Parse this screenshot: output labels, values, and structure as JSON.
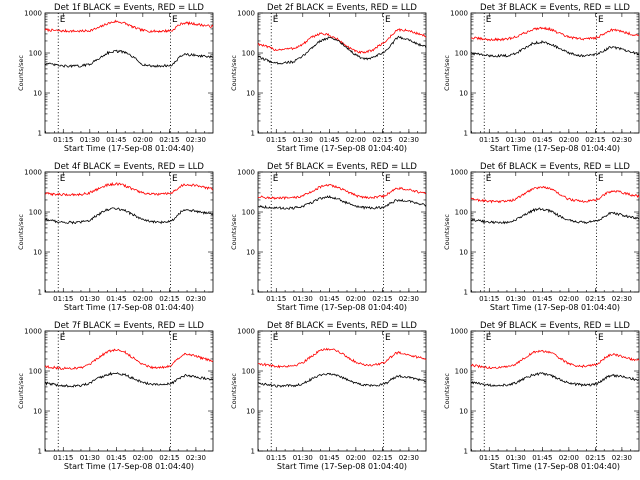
{
  "colors": {
    "events": "#000000",
    "lld": "#ff0000",
    "background": "#ffffff"
  },
  "chart_data": [
    {
      "type": "line",
      "title": "Det 1f BLACK = Events, RED = LLD",
      "xlabel": "Start Time (17-Sep-08 01:04:40)",
      "ylabel": "Counts/sec",
      "x_ticks": [
        "01:15",
        "01:30",
        "01:45",
        "02:00",
        "02:15",
        "02:30"
      ],
      "y_ticks": [
        "1",
        "10",
        "100",
        "1000"
      ],
      "yscale": "log",
      "ylim": [
        1,
        1000
      ],
      "xlim_min": [
        0,
        95
      ],
      "x_ticks_min": [
        10.33,
        25.33,
        40.33,
        55.33,
        70.33,
        85.33
      ],
      "markers_min": [
        7.5,
        71.0
      ],
      "marker_labels": [
        "E",
        "E"
      ],
      "grid": false,
      "x_min": [
        0,
        10,
        20,
        25,
        30,
        35,
        40,
        45,
        50,
        55,
        60,
        65,
        70,
        72,
        75,
        78,
        80,
        85,
        90,
        95
      ],
      "series": [
        {
          "color": "red",
          "values": [
            380,
            355,
            350,
            360,
            420,
            540,
            620,
            560,
            440,
            370,
            350,
            350,
            360,
            360,
            480,
            560,
            560,
            530,
            490,
            460
          ]
        },
        {
          "color": "black",
          "values": [
            55,
            47,
            47,
            52,
            70,
            100,
            112,
            105,
            78,
            52,
            47,
            47,
            49,
            49,
            70,
            92,
            92,
            88,
            82,
            78
          ]
        }
      ]
    },
    {
      "type": "line",
      "title": "Det 2f BLACK = Events, RED = LLD",
      "xlabel": "Start Time (17-Sep-08 01:04:40)",
      "ylabel": "Counts/sec",
      "x_ticks": [
        "01:15",
        "01:30",
        "01:45",
        "02:00",
        "02:15",
        "02:30"
      ],
      "y_ticks": [
        "1",
        "10",
        "100",
        "1000"
      ],
      "yscale": "log",
      "ylim": [
        1,
        1000
      ],
      "xlim_min": [
        0,
        95
      ],
      "x_ticks_min": [
        10.33,
        25.33,
        40.33,
        55.33,
        70.33,
        85.33
      ],
      "markers_min": [
        7.5,
        71.0
      ],
      "marker_labels": [
        "E",
        "E"
      ],
      "grid": false,
      "x_min": [
        0,
        10,
        20,
        25,
        30,
        35,
        40,
        45,
        50,
        55,
        60,
        65,
        70,
        72,
        75,
        78,
        80,
        85,
        90,
        95
      ],
      "series": [
        {
          "color": "red",
          "values": [
            170,
            120,
            130,
            160,
            240,
            310,
            280,
            220,
            150,
            110,
            100,
            120,
            170,
            190,
            260,
            360,
            380,
            360,
            310,
            260
          ]
        },
        {
          "color": "black",
          "values": [
            80,
            55,
            60,
            80,
            130,
            200,
            240,
            210,
            140,
            90,
            70,
            75,
            100,
            110,
            150,
            230,
            250,
            220,
            170,
            140
          ]
        }
      ]
    },
    {
      "type": "line",
      "title": "Det 3f BLACK = Events, RED = LLD",
      "xlabel": "Start Time (17-Sep-08 01:04:40)",
      "ylabel": "Counts/sec",
      "x_ticks": [
        "01:15",
        "01:30",
        "01:45",
        "02:00",
        "02:15",
        "02:30"
      ],
      "y_ticks": [
        "1",
        "10",
        "100",
        "1000"
      ],
      "yscale": "log",
      "ylim": [
        1,
        1000
      ],
      "xlim_min": [
        0,
        95
      ],
      "x_ticks_min": [
        10.33,
        25.33,
        40.33,
        55.33,
        70.33,
        85.33
      ],
      "markers_min": [
        7.5,
        71.0
      ],
      "marker_labels": [
        "E",
        "E"
      ],
      "grid": false,
      "x_min": [
        0,
        10,
        20,
        25,
        30,
        35,
        40,
        45,
        50,
        55,
        60,
        65,
        70,
        72,
        75,
        78,
        80,
        85,
        90,
        95
      ],
      "series": [
        {
          "color": "red",
          "values": [
            240,
            215,
            220,
            250,
            310,
            390,
            430,
            390,
            310,
            250,
            230,
            225,
            240,
            250,
            300,
            360,
            380,
            350,
            300,
            270
          ]
        },
        {
          "color": "black",
          "values": [
            100,
            85,
            85,
            95,
            130,
            175,
            190,
            170,
            130,
            100,
            88,
            85,
            90,
            95,
            115,
            135,
            140,
            125,
            105,
            95
          ]
        }
      ]
    },
    {
      "type": "line",
      "title": "Det 4f BLACK = Events, RED = LLD",
      "xlabel": "Start Time (17-Sep-08 01:04:40)",
      "ylabel": "Counts/sec",
      "x_ticks": [
        "01:15",
        "01:30",
        "01:45",
        "02:00",
        "02:15",
        "02:30"
      ],
      "y_ticks": [
        "1",
        "10",
        "100",
        "1000"
      ],
      "yscale": "log",
      "ylim": [
        1,
        1000
      ],
      "xlim_min": [
        0,
        95
      ],
      "x_ticks_min": [
        10.33,
        25.33,
        40.33,
        55.33,
        70.33,
        85.33
      ],
      "markers_min": [
        7.5,
        71.0
      ],
      "marker_labels": [
        "E",
        "E"
      ],
      "grid": false,
      "x_min": [
        0,
        10,
        20,
        25,
        30,
        35,
        40,
        45,
        50,
        55,
        60,
        65,
        70,
        72,
        75,
        78,
        80,
        85,
        90,
        95
      ],
      "series": [
        {
          "color": "red",
          "values": [
            290,
            270,
            275,
            300,
            380,
            470,
            510,
            460,
            370,
            300,
            280,
            275,
            290,
            300,
            390,
            470,
            490,
            460,
            410,
            380
          ]
        },
        {
          "color": "black",
          "values": [
            65,
            55,
            55,
            62,
            85,
            115,
            125,
            110,
            85,
            65,
            57,
            55,
            58,
            62,
            85,
            110,
            115,
            105,
            95,
            88
          ]
        }
      ]
    },
    {
      "type": "line",
      "title": "Det 5f BLACK = Events, RED = LLD",
      "xlabel": "Start Time (17-Sep-08 01:04:40)",
      "ylabel": "Counts/sec",
      "x_ticks": [
        "01:15",
        "01:30",
        "01:45",
        "02:00",
        "02:15",
        "02:30"
      ],
      "y_ticks": [
        "1",
        "10",
        "100",
        "1000"
      ],
      "yscale": "log",
      "ylim": [
        1,
        1000
      ],
      "xlim_min": [
        0,
        95
      ],
      "x_ticks_min": [
        10.33,
        25.33,
        40.33,
        55.33,
        70.33,
        85.33
      ],
      "markers_min": [
        7.5,
        71.0
      ],
      "marker_labels": [
        "E",
        "E"
      ],
      "grid": false,
      "x_min": [
        0,
        10,
        20,
        25,
        30,
        35,
        40,
        45,
        50,
        55,
        60,
        65,
        70,
        72,
        75,
        78,
        80,
        85,
        90,
        95
      ],
      "series": [
        {
          "color": "red",
          "values": [
            240,
            220,
            225,
            250,
            320,
            420,
            470,
            420,
            330,
            260,
            235,
            230,
            245,
            255,
            320,
            380,
            390,
            360,
            320,
            290
          ]
        },
        {
          "color": "black",
          "values": [
            140,
            125,
            125,
            135,
            170,
            220,
            240,
            215,
            170,
            140,
            128,
            125,
            130,
            135,
            165,
            195,
            200,
            185,
            165,
            150
          ]
        }
      ]
    },
    {
      "type": "line",
      "title": "Det 6f BLACK = Events, RED = LLD",
      "xlabel": "Start Time (17-Sep-08 01:04:40)",
      "ylabel": "Counts/sec",
      "x_ticks": [
        "01:15",
        "01:30",
        "01:45",
        "02:00",
        "02:15",
        "02:30"
      ],
      "y_ticks": [
        "1",
        "10",
        "100",
        "1000"
      ],
      "yscale": "log",
      "ylim": [
        1,
        1000
      ],
      "xlim_min": [
        0,
        95
      ],
      "x_ticks_min": [
        10.33,
        25.33,
        40.33,
        55.33,
        70.33,
        85.33
      ],
      "markers_min": [
        7.5,
        71.0
      ],
      "marker_labels": [
        "E",
        "E"
      ],
      "grid": false,
      "x_min": [
        0,
        10,
        20,
        25,
        30,
        35,
        40,
        45,
        50,
        55,
        60,
        65,
        70,
        72,
        75,
        78,
        80,
        85,
        90,
        95
      ],
      "series": [
        {
          "color": "red",
          "values": [
            210,
            185,
            185,
            205,
            280,
            380,
            430,
            380,
            280,
            210,
            190,
            185,
            200,
            210,
            260,
            320,
            340,
            310,
            270,
            250
          ]
        },
        {
          "color": "black",
          "values": [
            65,
            55,
            55,
            62,
            82,
            110,
            120,
            105,
            80,
            62,
            57,
            55,
            58,
            60,
            75,
            90,
            95,
            85,
            75,
            70
          ]
        }
      ]
    },
    {
      "type": "line",
      "title": "Det 7f BLACK = Events, RED = LLD",
      "xlabel": "Start Time (17-Sep-08 01:04:40)",
      "ylabel": "Counts/sec",
      "x_ticks": [
        "01:15",
        "01:30",
        "01:45",
        "02:00",
        "02:15",
        "02:30"
      ],
      "y_ticks": [
        "1",
        "10",
        "100",
        "1000"
      ],
      "yscale": "log",
      "ylim": [
        1,
        1000
      ],
      "xlim_min": [
        0,
        95
      ],
      "x_ticks_min": [
        10.33,
        25.33,
        40.33,
        55.33,
        70.33,
        85.33
      ],
      "markers_min": [
        7.5,
        71.0
      ],
      "marker_labels": [
        "E",
        "E"
      ],
      "grid": false,
      "x_min": [
        0,
        10,
        20,
        25,
        30,
        35,
        40,
        45,
        50,
        55,
        60,
        65,
        70,
        72,
        75,
        78,
        80,
        85,
        90,
        95
      ],
      "series": [
        {
          "color": "red",
          "values": [
            130,
            115,
            120,
            140,
            210,
            300,
            340,
            300,
            210,
            150,
            125,
            120,
            135,
            145,
            200,
            260,
            270,
            240,
            200,
            180
          ]
        },
        {
          "color": "black",
          "values": [
            50,
            42,
            43,
            48,
            65,
            82,
            88,
            80,
            65,
            52,
            47,
            45,
            48,
            50,
            62,
            75,
            78,
            72,
            65,
            60
          ]
        }
      ]
    },
    {
      "type": "line",
      "title": "Det 8f BLACK = Events, RED = LLD",
      "xlabel": "Start Time (17-Sep-08 01:04:40)",
      "ylabel": "Counts/sec",
      "x_ticks": [
        "01:15",
        "01:30",
        "01:45",
        "02:00",
        "02:15",
        "02:30"
      ],
      "y_ticks": [
        "1",
        "10",
        "100",
        "1000"
      ],
      "yscale": "log",
      "ylim": [
        1,
        1000
      ],
      "xlim_min": [
        0,
        95
      ],
      "x_ticks_min": [
        10.33,
        25.33,
        40.33,
        55.33,
        70.33,
        85.33
      ],
      "markers_min": [
        7.5,
        71.0
      ],
      "marker_labels": [
        "E",
        "E"
      ],
      "grid": false,
      "x_min": [
        0,
        10,
        20,
        25,
        30,
        35,
        40,
        45,
        50,
        55,
        60,
        65,
        70,
        72,
        75,
        78,
        80,
        85,
        90,
        95
      ],
      "series": [
        {
          "color": "red",
          "values": [
            155,
            130,
            135,
            160,
            230,
            320,
            360,
            320,
            230,
            170,
            145,
            140,
            155,
            165,
            220,
            280,
            290,
            260,
            220,
            200
          ]
        },
        {
          "color": "black",
          "values": [
            50,
            42,
            43,
            48,
            62,
            80,
            86,
            78,
            62,
            50,
            45,
            43,
            46,
            48,
            60,
            72,
            75,
            70,
            62,
            58
          ]
        }
      ]
    },
    {
      "type": "line",
      "title": "Det 9f BLACK = Events, RED = LLD",
      "xlabel": "Start Time (17-Sep-08 01:04:40)",
      "ylabel": "Counts/sec",
      "x_ticks": [
        "01:15",
        "01:30",
        "01:45",
        "02:00",
        "02:15",
        "02:30"
      ],
      "y_ticks": [
        "1",
        "10",
        "100",
        "1000"
      ],
      "yscale": "log",
      "ylim": [
        1,
        1000
      ],
      "xlim_min": [
        0,
        95
      ],
      "x_ticks_min": [
        10.33,
        25.33,
        40.33,
        55.33,
        70.33,
        85.33
      ],
      "markers_min": [
        7.5,
        71.0
      ],
      "marker_labels": [
        "E",
        "E"
      ],
      "grid": false,
      "x_min": [
        0,
        10,
        20,
        25,
        30,
        35,
        40,
        45,
        50,
        55,
        60,
        65,
        70,
        72,
        75,
        78,
        80,
        85,
        90,
        95
      ],
      "series": [
        {
          "color": "red",
          "values": [
            140,
            120,
            125,
            145,
            210,
            290,
            320,
            290,
            210,
            155,
            135,
            130,
            145,
            155,
            200,
            250,
            260,
            235,
            200,
            185
          ]
        },
        {
          "color": "black",
          "values": [
            52,
            44,
            45,
            50,
            64,
            80,
            86,
            78,
            62,
            50,
            46,
            44,
            47,
            50,
            62,
            75,
            78,
            72,
            65,
            60
          ]
        }
      ]
    }
  ]
}
